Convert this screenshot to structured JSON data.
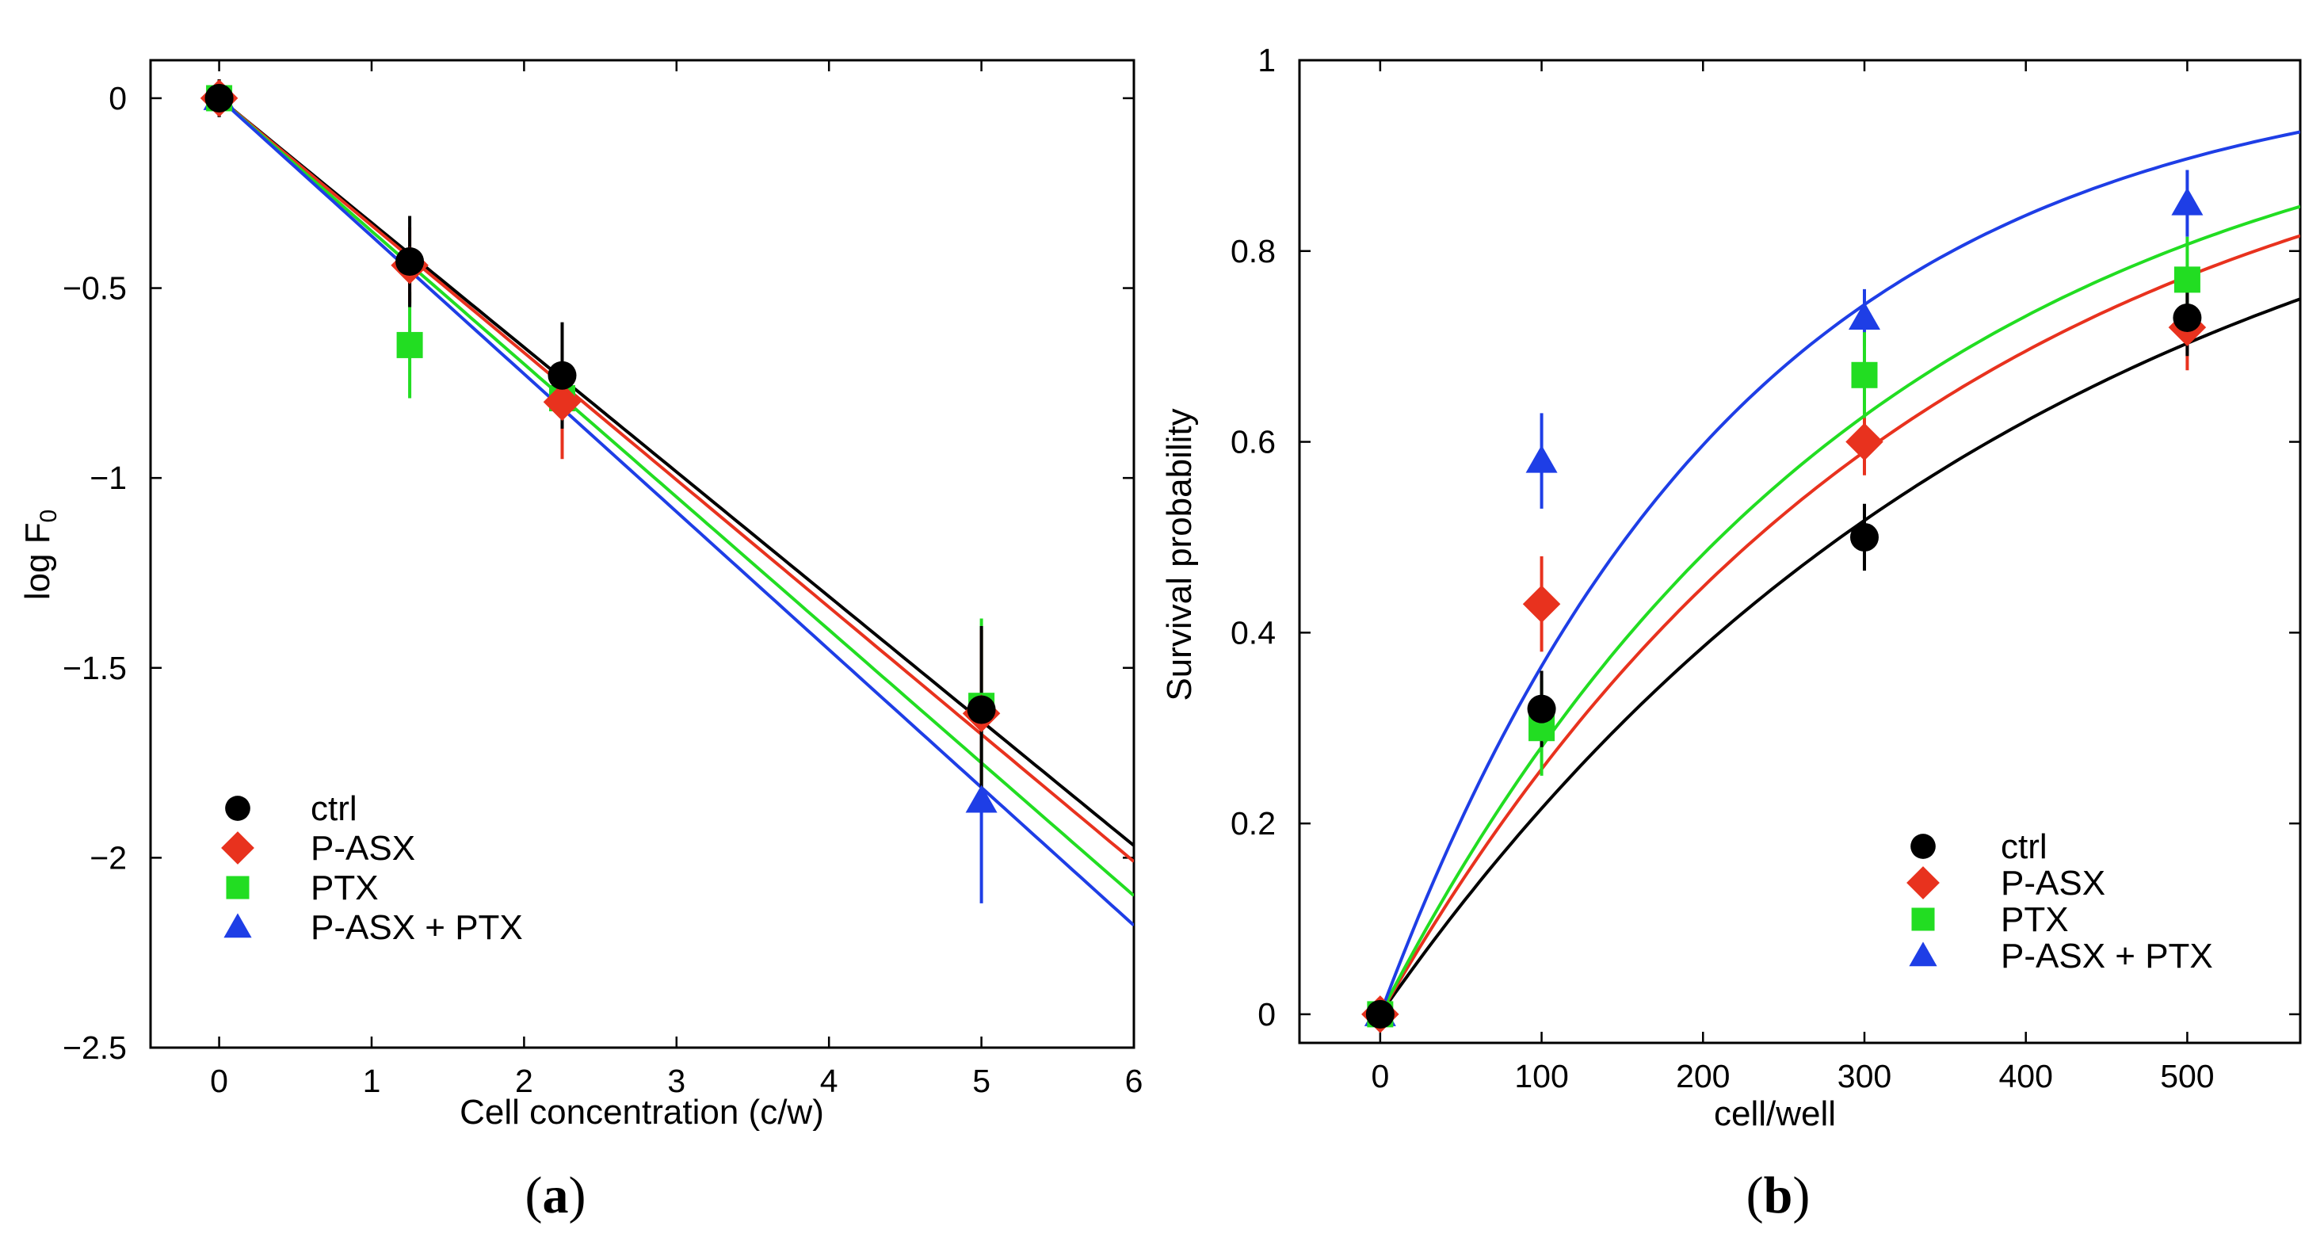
{
  "chart_data": [
    {
      "type": "scatter",
      "panel_label": "(a)",
      "panel_letter": "a",
      "xlabel": "Cell concentration (c/w)",
      "ylabel_base": "log F",
      "ylabel_sub": "0",
      "xlim": [
        -0.45,
        6
      ],
      "ylim": [
        -2.5,
        0.1
      ],
      "xticks": [
        0,
        1,
        2,
        3,
        4,
        5,
        6
      ],
      "xtick_labels": [
        "0",
        "1",
        "2",
        "3",
        "4",
        "5",
        "6"
      ],
      "yticks": [
        0,
        -0.5,
        -1,
        -1.5,
        -2,
        -2.5
      ],
      "ytick_labels": [
        "0",
        "−0.5",
        "−1",
        "−1.5",
        "−2",
        "−2.5"
      ],
      "legend_position": "bottom-left",
      "series": [
        {
          "name": "ctrl",
          "color": "#000000",
          "marker": "circle",
          "x": [
            0,
            1.25,
            2.25,
            5
          ],
          "y": [
            0,
            -0.43,
            -0.73,
            -1.61
          ],
          "err": [
            0.05,
            0.12,
            0.14,
            0.22
          ],
          "fit": {
            "type": "linear",
            "slope": -0.328
          }
        },
        {
          "name": "P-ASX",
          "color": "#e8321e",
          "marker": "diamond",
          "x": [
            0,
            1.25,
            2.25,
            5
          ],
          "y": [
            0,
            -0.44,
            -0.8,
            -1.62
          ],
          "err": [
            0.04,
            0.1,
            0.15,
            0.22
          ],
          "fit": {
            "type": "linear",
            "slope": -0.335
          }
        },
        {
          "name": "PTX",
          "color": "#22dd22",
          "marker": "square",
          "x": [
            0,
            1.25,
            2.25,
            5
          ],
          "y": [
            0,
            -0.65,
            -0.79,
            -1.6
          ],
          "err": [
            0.04,
            0.14,
            0.12,
            0.23
          ],
          "fit": {
            "type": "linear",
            "slope": -0.35
          }
        },
        {
          "name": "P-ASX + PTX",
          "color": "#1e3ee6",
          "marker": "triangle",
          "x": [
            0,
            5
          ],
          "y": [
            0,
            -1.85
          ],
          "err": [
            0.04,
            0.27
          ],
          "fit": {
            "type": "linear",
            "slope": -0.363
          }
        }
      ]
    },
    {
      "type": "scatter",
      "panel_label": "(b)",
      "panel_letter": "b",
      "xlabel": "cell/well",
      "ylabel": "Survival probability",
      "xlim": [
        -50,
        570
      ],
      "ylim": [
        -0.03,
        1
      ],
      "xticks": [
        0,
        100,
        200,
        300,
        400,
        500
      ],
      "xtick_labels": [
        "0",
        "100",
        "200",
        "300",
        "400",
        "500"
      ],
      "yticks": [
        0,
        0.2,
        0.4,
        0.6,
        0.8,
        1
      ],
      "ytick_labels": [
        "0",
        "0.2",
        "0.4",
        "0.6",
        "0.8",
        "1"
      ],
      "legend_position": "bottom-right",
      "series": [
        {
          "name": "ctrl",
          "color": "#000000",
          "marker": "circle",
          "x": [
            0,
            100,
            300,
            500
          ],
          "y": [
            0,
            0.32,
            0.5,
            0.73
          ],
          "err": [
            0.01,
            0.04,
            0.035,
            0.04
          ],
          "fit": {
            "type": "exponential_saturation",
            "rate": 0.00243
          }
        },
        {
          "name": "P-ASX",
          "color": "#e8321e",
          "marker": "diamond",
          "x": [
            0,
            100,
            300,
            500
          ],
          "y": [
            0,
            0.43,
            0.6,
            0.72
          ],
          "err": [
            0.01,
            0.05,
            0.035,
            0.045
          ],
          "fit": {
            "type": "exponential_saturation",
            "rate": 0.00297
          }
        },
        {
          "name": "PTX",
          "color": "#22dd22",
          "marker": "square",
          "x": [
            0,
            100,
            300,
            500
          ],
          "y": [
            0,
            0.3,
            0.67,
            0.77
          ],
          "err": [
            0.01,
            0.05,
            0.045,
            0.045
          ],
          "fit": {
            "type": "exponential_saturation",
            "rate": 0.00329
          }
        },
        {
          "name": "P-ASX + PTX",
          "color": "#1e3ee6",
          "marker": "triangle",
          "x": [
            0,
            100,
            300,
            500
          ],
          "y": [
            0,
            0.58,
            0.73,
            0.85
          ],
          "err": [
            0.01,
            0.05,
            0.03,
            0.035
          ],
          "fit": {
            "type": "exponential_saturation",
            "rate": 0.00454
          }
        }
      ]
    }
  ]
}
